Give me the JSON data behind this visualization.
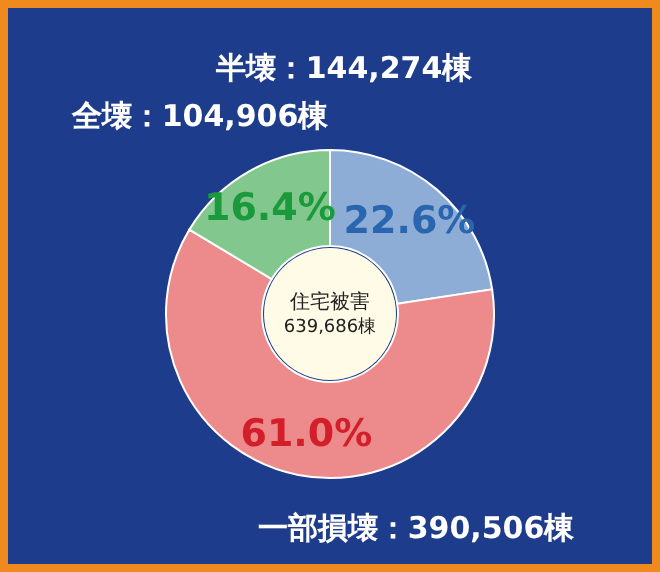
{
  "chart_data": {
    "type": "donut",
    "categories": [
      "半壊：144,274棟",
      "一部損壊：390,506棟",
      "全壊：104,906棟"
    ],
    "values": [
      22.6,
      61.0,
      16.4
    ],
    "colors": [
      "#8eadd6",
      "#ec8a8c",
      "#82c78e"
    ],
    "value_labels": [
      "22.6%",
      "61.0%",
      "16.4%"
    ],
    "annotations": [
      "住宅被害",
      "639,686棟"
    ],
    "legend": false
  }
}
